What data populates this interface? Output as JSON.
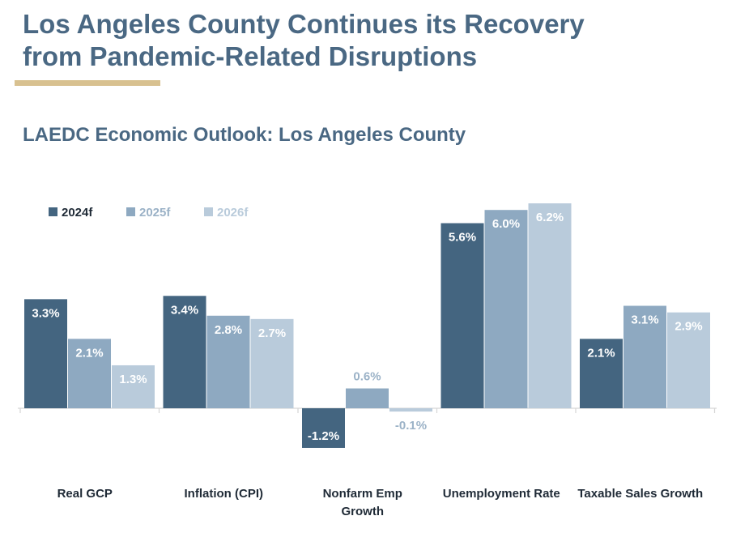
{
  "slide": {
    "title_line1": "Los Angeles County Continues its Recovery",
    "title_line2": "from Pandemic-Related Disruptions",
    "accent_color": "#d8c190",
    "title_color": "#4a6883"
  },
  "chart_data": {
    "type": "bar",
    "title": "LAEDC Economic Outlook: Los Angeles County",
    "categories": [
      [
        "Real GCP"
      ],
      [
        "Inflation (CPI)"
      ],
      [
        "Nonfarm Emp",
        "Growth"
      ],
      [
        "Unemployment Rate"
      ],
      [
        "Taxable Sales Growth"
      ]
    ],
    "series": [
      {
        "name": "2024f",
        "color": "#446580",
        "values": [
          3.3,
          3.4,
          -1.2,
          5.6,
          2.1
        ],
        "labels": [
          "3.3%",
          "3.4%",
          "-1.2%",
          "5.6%",
          "2.1%"
        ]
      },
      {
        "name": "2025f",
        "color": "#8ea9c1",
        "values": [
          2.1,
          2.8,
          0.6,
          6.0,
          3.1
        ],
        "labels": [
          "2.1%",
          "2.8%",
          "0.6%",
          "6.0%",
          "3.1%"
        ]
      },
      {
        "name": "2026f",
        "color": "#b9cbdb",
        "values": [
          1.3,
          2.7,
          -0.1,
          6.2,
          2.9
        ],
        "labels": [
          "1.3%",
          "2.7%",
          "-0.1%",
          "6.2%",
          "2.9%"
        ]
      }
    ],
    "legend_position": "top-left",
    "grid": false,
    "ylim": [
      -1.2,
      6.2
    ]
  }
}
